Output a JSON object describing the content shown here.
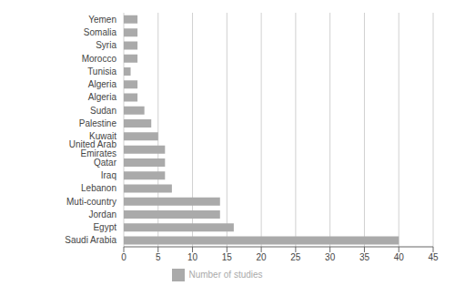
{
  "chart_data": {
    "type": "bar",
    "orientation": "horizontal",
    "categories": [
      "Saudi Arabia",
      "Egypt",
      "Jordan",
      "Muti-country",
      "Lebanon",
      "Iraq",
      "Qatar",
      "United Arab Emirates",
      "Kuwait",
      "Palestine",
      "Sudan",
      "Algeria",
      "Algeria",
      "Tunisia",
      "Morocco",
      "Syria",
      "Somalia",
      "Yemen"
    ],
    "series": [
      {
        "name": "Number of studies",
        "color": "#aaaaaa",
        "values": [
          40,
          16,
          14,
          14,
          7,
          6,
          6,
          6,
          5,
          4,
          3,
          2,
          2,
          1,
          2,
          2,
          2,
          2
        ]
      }
    ],
    "xlim": [
      0,
      45
    ],
    "xticks": [
      0,
      5,
      10,
      15,
      20,
      25,
      30,
      35,
      40,
      45
    ],
    "grid": true,
    "legend": "lower center"
  }
}
